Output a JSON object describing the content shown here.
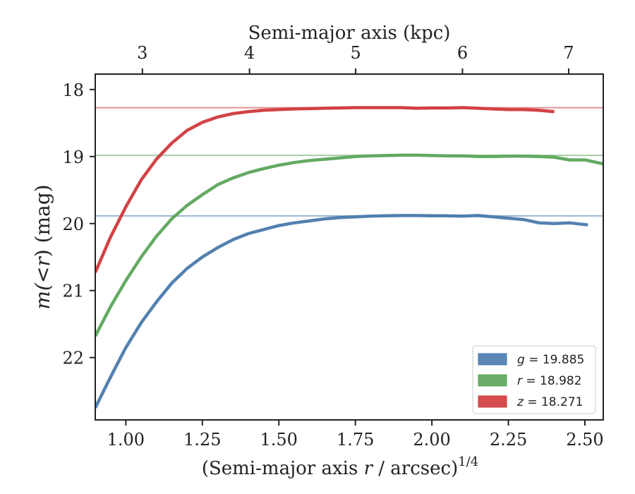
{
  "chart_data": {
    "type": "line",
    "xlabel": "(Semi-major axis r / arcsec)^1/4",
    "xlabel_parts": {
      "prefix": "(Semi-major axis ",
      "var": "r",
      "middle": " / arcsec)",
      "sup": "1/4"
    },
    "ylabel": "m(<r) (mag)",
    "ylabel_parts": {
      "prefix": "m(",
      "lt": "<",
      "var": "r",
      "suffix": ") (mag)"
    },
    "top_xlabel": "Semi-major axis (kpc)",
    "xlim": [
      0.9,
      2.56
    ],
    "ylim": [
      22.93,
      17.77
    ],
    "y_inverted": true,
    "x_ticks": [
      1.0,
      1.25,
      1.5,
      1.75,
      2.0,
      2.25,
      2.5
    ],
    "x_tick_labels": [
      "1.00",
      "1.25",
      "1.50",
      "1.75",
      "2.00",
      "2.25",
      "2.50"
    ],
    "y_ticks": [
      18,
      19,
      20,
      21,
      22
    ],
    "y_tick_labels": [
      "18",
      "19",
      "20",
      "21",
      "22"
    ],
    "top_ticks_x": [
      1.054,
      1.404,
      1.751,
      2.1,
      2.447
    ],
    "top_tick_labels": [
      "3",
      "4",
      "5",
      "6",
      "7"
    ],
    "grid": false,
    "legend_position": "lower-right",
    "series": [
      {
        "name": "g = 19.885",
        "legend_var": "g",
        "legend_value": "= 19.885",
        "color": "#4a7aac",
        "asymptote": 19.885,
        "x": [
          0.9,
          0.95,
          1.0,
          1.05,
          1.1,
          1.15,
          1.2,
          1.25,
          1.3,
          1.35,
          1.4,
          1.45,
          1.5,
          1.55,
          1.6,
          1.65,
          1.7,
          1.75,
          1.8,
          1.85,
          1.9,
          1.95,
          2.0,
          2.05,
          2.1,
          2.15,
          2.2,
          2.25,
          2.3,
          2.35,
          2.4,
          2.45,
          2.51
        ],
        "y": [
          22.75,
          22.29,
          21.85,
          21.48,
          21.17,
          20.89,
          20.67,
          20.5,
          20.36,
          20.24,
          20.15,
          20.09,
          20.03,
          19.99,
          19.96,
          19.93,
          19.91,
          19.9,
          19.89,
          19.885,
          19.88,
          19.88,
          19.885,
          19.885,
          19.89,
          19.88,
          19.9,
          19.92,
          19.94,
          19.99,
          20.0,
          19.99,
          20.02
        ]
      },
      {
        "name": "r = 18.982",
        "legend_var": "r",
        "legend_value": "= 18.982",
        "color": "#5ba55a",
        "asymptote": 18.982,
        "x": [
          0.9,
          0.95,
          1.0,
          1.05,
          1.1,
          1.15,
          1.2,
          1.25,
          1.3,
          1.35,
          1.4,
          1.45,
          1.5,
          1.55,
          1.6,
          1.65,
          1.7,
          1.75,
          1.8,
          1.85,
          1.9,
          1.95,
          2.0,
          2.05,
          2.1,
          2.15,
          2.2,
          2.25,
          2.3,
          2.35,
          2.4,
          2.45,
          2.5,
          2.56
        ],
        "y": [
          21.68,
          21.24,
          20.85,
          20.5,
          20.19,
          19.93,
          19.73,
          19.57,
          19.42,
          19.32,
          19.24,
          19.18,
          19.13,
          19.09,
          19.06,
          19.04,
          19.02,
          19.0,
          18.99,
          18.985,
          18.98,
          18.98,
          18.985,
          18.99,
          18.99,
          19.0,
          19.0,
          18.995,
          18.995,
          19.0,
          19.01,
          19.05,
          19.05,
          19.11
        ]
      },
      {
        "name": "z = 18.271",
        "legend_var": "z",
        "legend_value": "= 18.271",
        "color": "#d0393b",
        "asymptote": 18.271,
        "x": [
          0.9,
          0.95,
          1.0,
          1.05,
          1.1,
          1.15,
          1.2,
          1.25,
          1.3,
          1.35,
          1.4,
          1.45,
          1.5,
          1.55,
          1.6,
          1.65,
          1.7,
          1.75,
          1.8,
          1.85,
          1.9,
          1.95,
          2.0,
          2.05,
          2.1,
          2.15,
          2.2,
          2.25,
          2.3,
          2.35,
          2.4
        ],
        "y": [
          20.73,
          20.2,
          19.75,
          19.35,
          19.04,
          18.8,
          18.61,
          18.49,
          18.41,
          18.36,
          18.33,
          18.31,
          18.3,
          18.29,
          18.285,
          18.28,
          18.275,
          18.27,
          18.27,
          18.27,
          18.27,
          18.28,
          18.275,
          18.275,
          18.27,
          18.28,
          18.29,
          18.3,
          18.3,
          18.31,
          18.33
        ]
      }
    ]
  }
}
